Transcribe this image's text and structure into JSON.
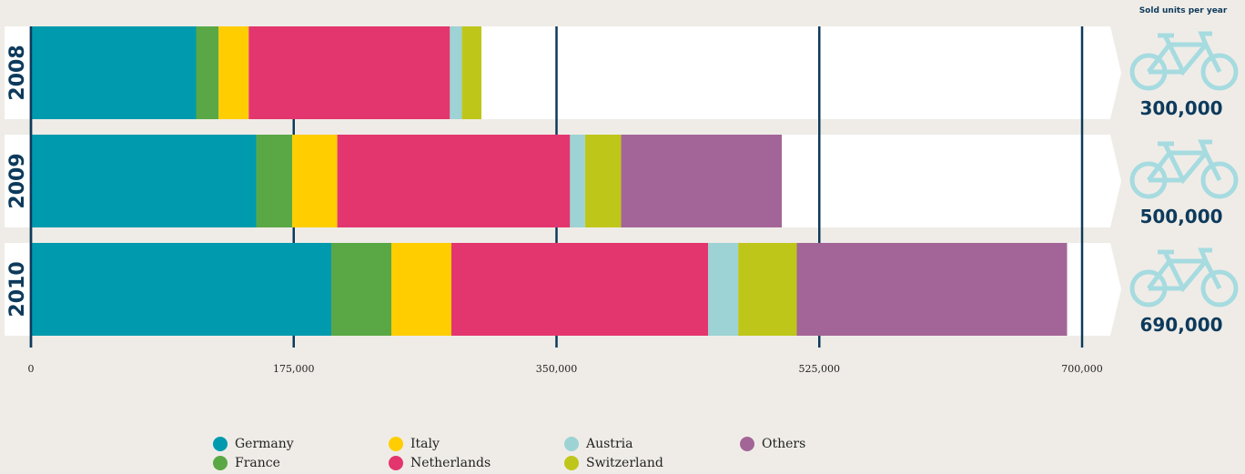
{
  "chart_data": {
    "type": "stacked-bar-horizontal",
    "header": "Sold units per year",
    "categories": [
      "2008",
      "2009",
      "2010"
    ],
    "series": [
      {
        "name": "Germany",
        "color": "#009aaf",
        "values": [
          110000,
          150000,
          200000
        ]
      },
      {
        "name": "France",
        "color": "#5aa845",
        "values": [
          15000,
          24000,
          40000
        ]
      },
      {
        "name": "Italy",
        "color": "#ffcd00",
        "values": [
          20000,
          30000,
          40000
        ]
      },
      {
        "name": "Netherlands",
        "color": "#e3366e",
        "values": [
          134000,
          155000,
          171000
        ]
      },
      {
        "name": "Austria",
        "color": "#9dd3d4",
        "values": [
          8000,
          10000,
          20000
        ]
      },
      {
        "name": "Switzerland",
        "color": "#bfc61a",
        "values": [
          13000,
          24000,
          39000
        ]
      },
      {
        "name": "Others",
        "color": "#a36597",
        "values": [
          0,
          107000,
          180000
        ]
      }
    ],
    "total_labels": [
      "300,000",
      "500,000",
      "690,000"
    ],
    "xlim": [
      0,
      700000
    ],
    "xticks": [
      0,
      {
        "value": 175000,
        "label": "175,000"
      },
      {
        "value": 350000,
        "label": "350,000"
      },
      {
        "value": 525000,
        "label": "525,000"
      },
      {
        "value": 700000,
        "label": "700,000"
      }
    ],
    "grid": true
  }
}
